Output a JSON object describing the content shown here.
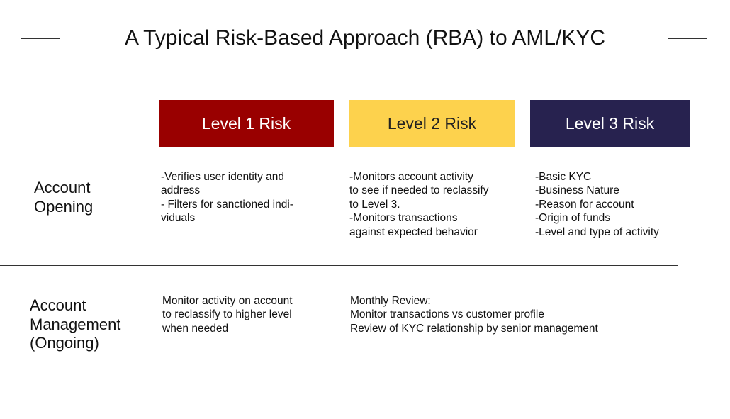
{
  "title": "A Typical Risk-Based Approach (RBA) to AML/KYC",
  "levels": [
    {
      "label": "Level 1 Risk"
    },
    {
      "label": "Level 2 Risk"
    },
    {
      "label": "Level 3 Risk"
    }
  ],
  "rows": [
    {
      "label": [
        "Account",
        "Opening"
      ],
      "cells": [
        [
          "-Verifies  user identity and",
          "address",
          "- Filters for sanctioned indi-",
          "viduals"
        ],
        [
          "-Monitors account activity",
          "to see if needed to reclassify",
          "to Level 3.",
          "-Monitors transactions",
          "against expected behavior"
        ],
        [
          "-Basic KYC",
          "-Business Nature",
          "-Reason for account",
          "-Origin of funds",
          "-Level and type of activity"
        ]
      ]
    },
    {
      "label": [
        "Account",
        "Management",
        "(Ongoing)"
      ],
      "cells": [
        [
          "Monitor activity on account",
          "to reclassify to higher level",
          "when needed"
        ],
        [
          "Monthly Review:",
          "Monitor transactions vs customer profile",
          "Review of KYC relationship by senior management"
        ]
      ]
    }
  ]
}
